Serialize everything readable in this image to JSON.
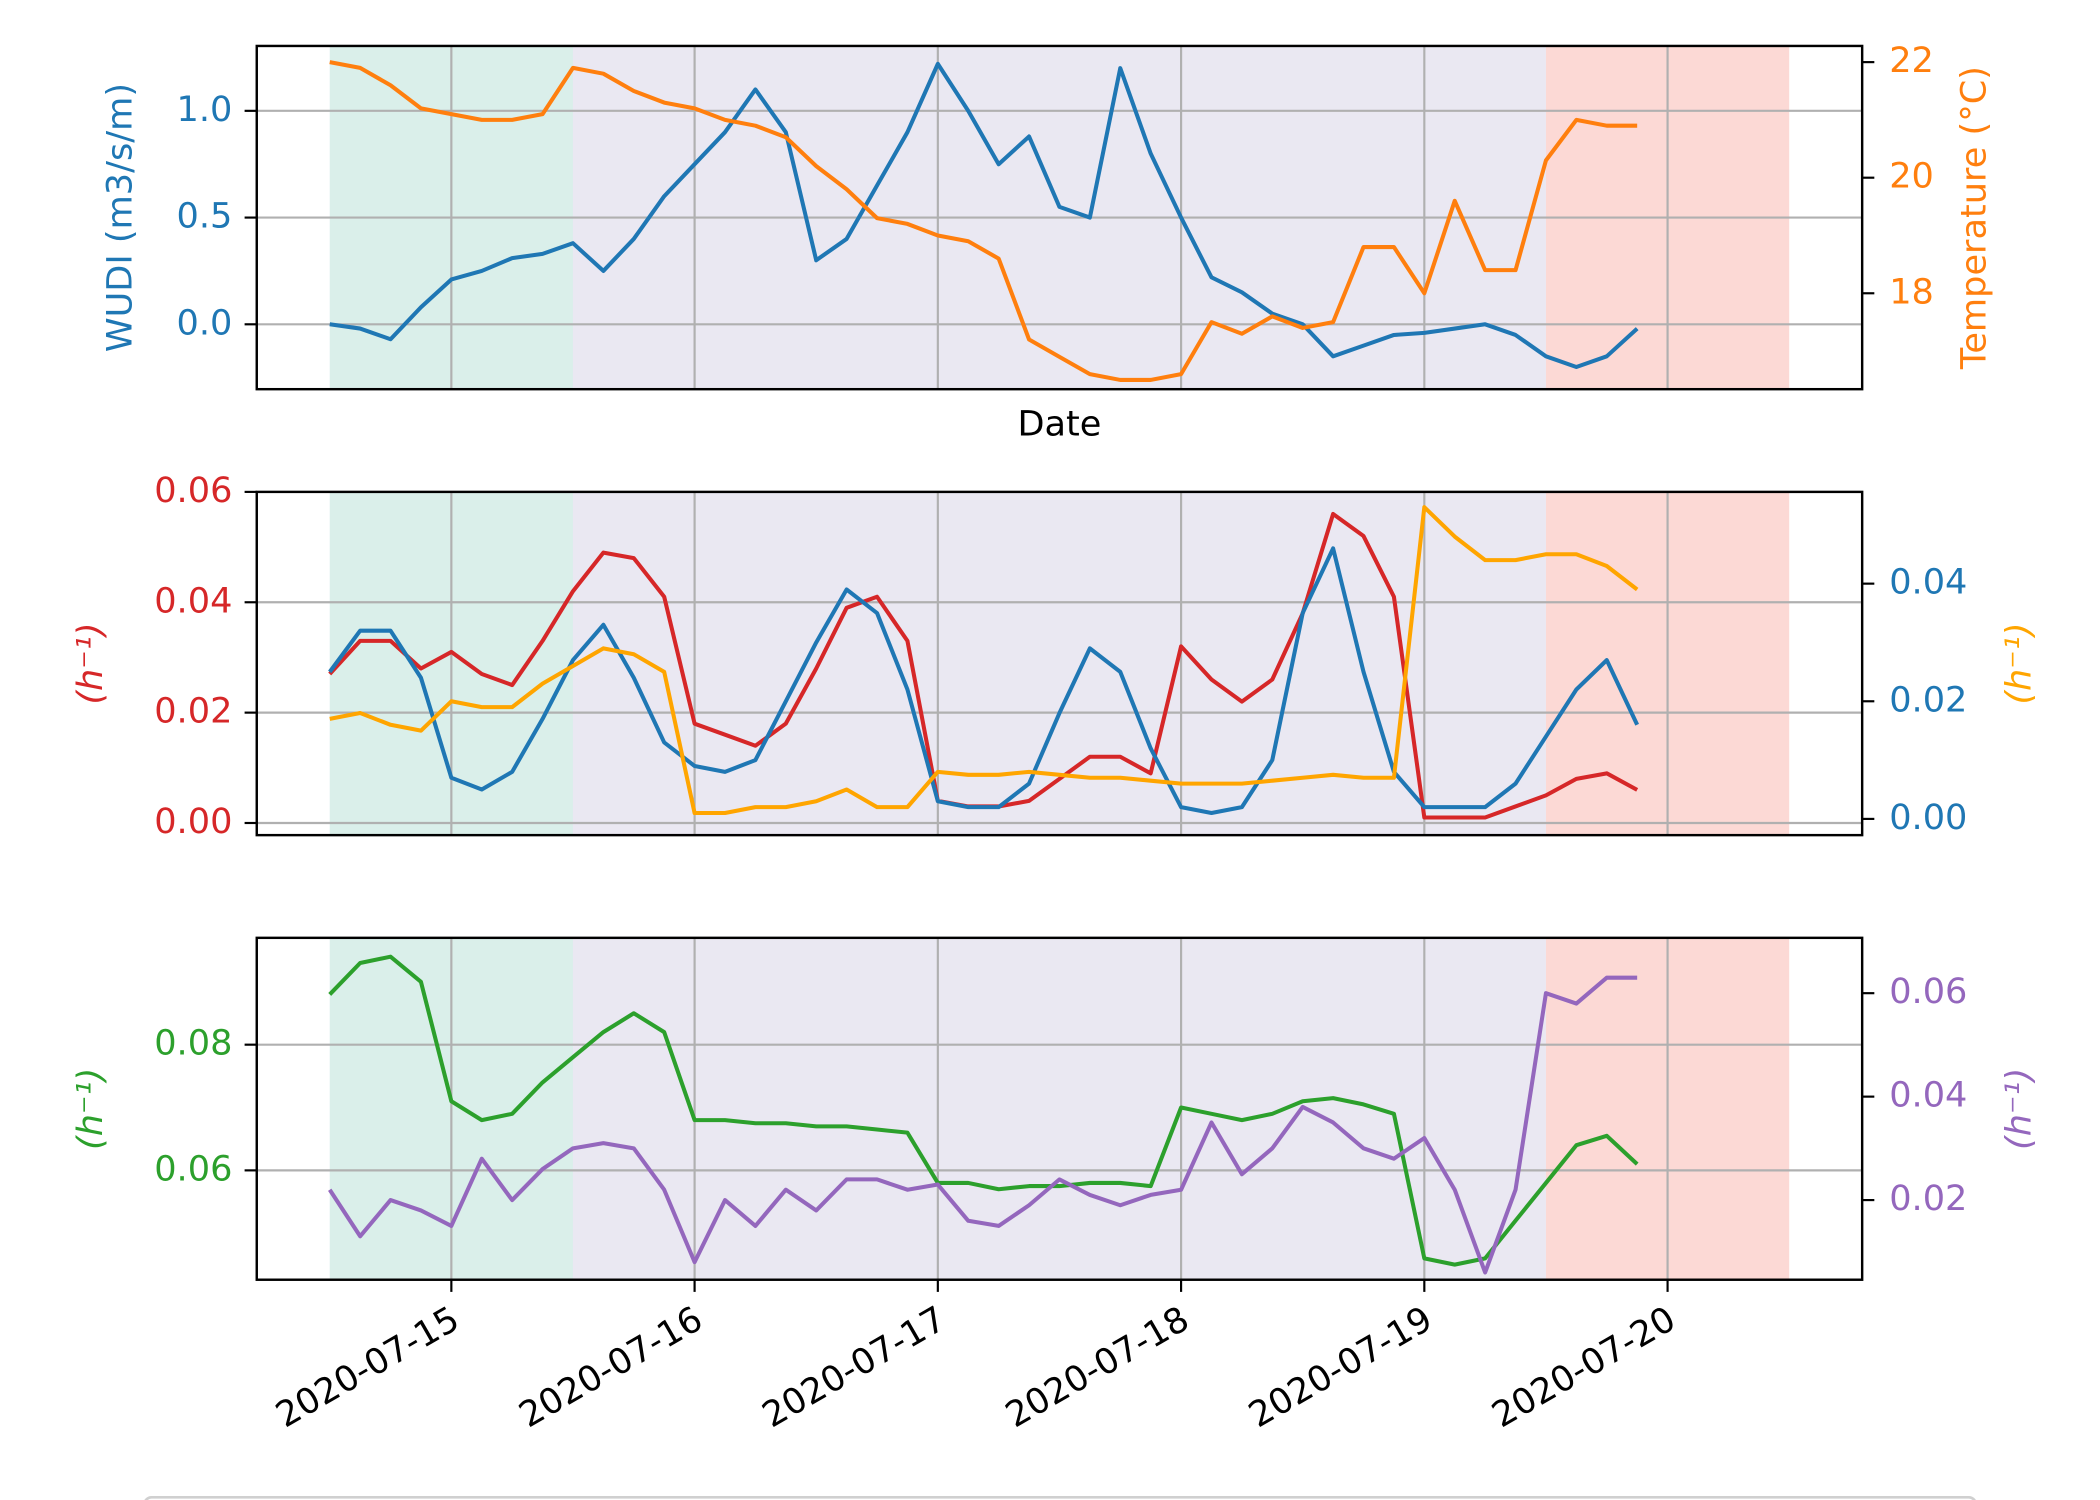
{
  "chart_data": [
    {
      "type": "line",
      "xlabel": "Date",
      "ylabel": "WUDI (m3/s/m)",
      "y2label": "Temperature (°C)",
      "ytick_color": "#1f77b4",
      "ylabel_color": "#1f77b4",
      "y2tick_color": "#ff7f0e",
      "y2label_color": "#ff7f0e",
      "grid": true,
      "xlim": [
        "2020-07-14T04:48",
        "2020-07-20T19:12"
      ],
      "xticks": [
        "2020-07-15",
        "2020-07-16",
        "2020-07-17",
        "2020-07-18",
        "2020-07-19",
        "2020-07-20"
      ],
      "ylim": [
        -0.304,
        1.304
      ],
      "yticks": [
        {
          "value": 0,
          "label": "0.0"
        },
        {
          "value": 0.5,
          "label": "0.5"
        },
        {
          "value": 1,
          "label": "1.0"
        }
      ],
      "y2lim": [
        16.34,
        22.28
      ],
      "y2ticks": [
        18,
        20,
        22
      ],
      "spans": [
        {
          "start": "2020-07-14T12:00",
          "end": "2020-07-15T12:00",
          "color": "#daefea"
        },
        {
          "start": "2020-07-15T12:00",
          "end": "2020-07-19T12:00",
          "color": "#eae8f2"
        },
        {
          "start": "2020-07-19T12:00",
          "end": "2020-07-20T12:00",
          "color": "#fcd9d5"
        }
      ],
      "x": [
        "2020-07-14T12:00",
        "2020-07-14T15:00",
        "2020-07-14T18:00",
        "2020-07-14T21:00",
        "2020-07-15T00:00",
        "2020-07-15T03:00",
        "2020-07-15T06:00",
        "2020-07-15T09:00",
        "2020-07-15T12:00",
        "2020-07-15T15:00",
        "2020-07-15T18:00",
        "2020-07-15T21:00",
        "2020-07-16T00:00",
        "2020-07-16T03:00",
        "2020-07-16T06:00",
        "2020-07-16T09:00",
        "2020-07-16T12:00",
        "2020-07-16T15:00",
        "2020-07-16T18:00",
        "2020-07-16T21:00",
        "2020-07-17T00:00",
        "2020-07-17T03:00",
        "2020-07-17T06:00",
        "2020-07-17T09:00",
        "2020-07-17T12:00",
        "2020-07-17T15:00",
        "2020-07-17T18:00",
        "2020-07-17T21:00",
        "2020-07-18T00:00",
        "2020-07-18T03:00",
        "2020-07-18T06:00",
        "2020-07-18T09:00",
        "2020-07-18T12:00",
        "2020-07-18T15:00",
        "2020-07-18T18:00",
        "2020-07-18T21:00",
        "2020-07-19T00:00",
        "2020-07-19T03:00",
        "2020-07-19T06:00",
        "2020-07-19T09:00",
        "2020-07-19T12:00",
        "2020-07-19T15:00",
        "2020-07-19T18:00",
        "2020-07-19T21:00"
      ],
      "series": [
        {
          "color": "#1f77b4",
          "axis": "y",
          "values": [
            0.0,
            -0.02,
            -0.07,
            0.08,
            0.21,
            0.25,
            0.31,
            0.33,
            0.38,
            0.25,
            0.4,
            0.6,
            0.75,
            0.9,
            1.1,
            0.9,
            0.3,
            0.4,
            0.65,
            0.9,
            1.22,
            1.0,
            0.75,
            0.88,
            0.55,
            0.5,
            1.2,
            0.8,
            0.5,
            0.22,
            0.15,
            0.05,
            0.0,
            -0.15,
            -0.1,
            -0.05,
            -0.04,
            -0.02,
            0.0,
            -0.05,
            -0.15,
            -0.2,
            -0.15,
            -0.02
          ]
        },
        {
          "color": "#ff7f0e",
          "axis": "y2",
          "values": [
            22.0,
            21.9,
            21.6,
            21.2,
            21.1,
            21.0,
            21.0,
            21.1,
            21.9,
            21.8,
            21.5,
            21.3,
            21.2,
            21.0,
            20.9,
            20.7,
            20.2,
            19.8,
            19.3,
            19.2,
            19.0,
            18.9,
            18.6,
            17.2,
            16.9,
            16.6,
            16.5,
            16.5,
            16.6,
            17.5,
            17.3,
            17.6,
            17.4,
            17.5,
            18.8,
            18.8,
            18.0,
            19.6,
            18.4,
            18.4,
            20.3,
            21.0,
            20.9,
            20.9
          ]
        }
      ]
    },
    {
      "type": "line",
      "ylabel": "(h⁻¹)",
      "y2label": "(h⁻¹)",
      "ytick_color": "#d62728",
      "ylabel_color": "#d62728",
      "y2tick_color": "#1f77b4",
      "y2label_color": "#ffa500",
      "grid": true,
      "xlim": [
        "2020-07-14T04:48",
        "2020-07-20T19:12"
      ],
      "xticks": [
        "2020-07-15",
        "2020-07-16",
        "2020-07-17",
        "2020-07-18",
        "2020-07-19",
        "2020-07-20"
      ],
      "ylim": [
        -0.0022,
        0.06
      ],
      "yticks": [
        {
          "value": 0,
          "label": "0.00"
        },
        {
          "value": 0.02,
          "label": "0.02"
        },
        {
          "value": 0.04,
          "label": "0.04"
        },
        {
          "value": 0.06,
          "label": "0.06"
        }
      ],
      "y2lim": [
        -0.00276,
        0.0556
      ],
      "y2ticks": [
        {
          "value": 0,
          "label": "0.00"
        },
        {
          "value": 0.02,
          "label": "0.02"
        },
        {
          "value": 0.04,
          "label": "0.04"
        }
      ],
      "spans": [
        {
          "start": "2020-07-14T12:00",
          "end": "2020-07-15T12:00",
          "color": "#daefea"
        },
        {
          "start": "2020-07-15T12:00",
          "end": "2020-07-19T12:00",
          "color": "#eae8f2"
        },
        {
          "start": "2020-07-19T12:00",
          "end": "2020-07-20T12:00",
          "color": "#fcd9d5"
        }
      ],
      "x": [
        "2020-07-14T12:00",
        "2020-07-14T15:00",
        "2020-07-14T18:00",
        "2020-07-14T21:00",
        "2020-07-15T00:00",
        "2020-07-15T03:00",
        "2020-07-15T06:00",
        "2020-07-15T09:00",
        "2020-07-15T12:00",
        "2020-07-15T15:00",
        "2020-07-15T18:00",
        "2020-07-15T21:00",
        "2020-07-16T00:00",
        "2020-07-16T03:00",
        "2020-07-16T06:00",
        "2020-07-16T09:00",
        "2020-07-16T12:00",
        "2020-07-16T15:00",
        "2020-07-16T18:00",
        "2020-07-16T21:00",
        "2020-07-17T00:00",
        "2020-07-17T03:00",
        "2020-07-17T06:00",
        "2020-07-17T09:00",
        "2020-07-17T12:00",
        "2020-07-17T15:00",
        "2020-07-17T18:00",
        "2020-07-17T21:00",
        "2020-07-18T00:00",
        "2020-07-18T03:00",
        "2020-07-18T06:00",
        "2020-07-18T09:00",
        "2020-07-18T12:00",
        "2020-07-18T15:00",
        "2020-07-18T18:00",
        "2020-07-18T21:00",
        "2020-07-19T00:00",
        "2020-07-19T03:00",
        "2020-07-19T06:00",
        "2020-07-19T09:00",
        "2020-07-19T12:00",
        "2020-07-19T15:00",
        "2020-07-19T18:00",
        "2020-07-19T21:00"
      ],
      "series": [
        {
          "color": "#d62728",
          "axis": "y",
          "values": [
            0.027,
            0.033,
            0.033,
            0.028,
            0.031,
            0.027,
            0.025,
            0.033,
            0.042,
            0.049,
            0.048,
            0.041,
            0.018,
            0.016,
            0.014,
            0.018,
            0.028,
            0.039,
            0.041,
            0.033,
            0.004,
            0.003,
            0.003,
            0.004,
            0.008,
            0.012,
            0.012,
            0.009,
            0.032,
            0.026,
            0.022,
            0.026,
            0.038,
            0.056,
            0.052,
            0.041,
            0.001,
            0.001,
            0.001,
            0.003,
            0.005,
            0.008,
            0.009,
            0.006
          ]
        },
        {
          "color": "#1f77b4",
          "axis": "y2",
          "values": [
            0.025,
            0.032,
            0.032,
            0.024,
            0.007,
            0.005,
            0.008,
            0.017,
            0.027,
            0.033,
            0.024,
            0.013,
            0.009,
            0.008,
            0.01,
            0.02,
            0.03,
            0.039,
            0.035,
            0.022,
            0.003,
            0.002,
            0.002,
            0.006,
            0.018,
            0.029,
            0.025,
            0.012,
            0.002,
            0.001,
            0.002,
            0.01,
            0.035,
            0.046,
            0.025,
            0.008,
            0.002,
            0.002,
            0.002,
            0.006,
            0.014,
            0.022,
            0.027,
            0.016
          ]
        },
        {
          "color": "#ffa500",
          "axis": "y2",
          "values": [
            0.017,
            0.018,
            0.016,
            0.015,
            0.02,
            0.019,
            0.019,
            0.023,
            0.026,
            0.029,
            0.028,
            0.025,
            0.001,
            0.001,
            0.002,
            0.002,
            0.003,
            0.005,
            0.002,
            0.002,
            0.008,
            0.0075,
            0.0075,
            0.008,
            0.0075,
            0.007,
            0.007,
            0.0065,
            0.006,
            0.006,
            0.006,
            0.0065,
            0.007,
            0.0075,
            0.007,
            0.007,
            0.053,
            0.048,
            0.044,
            0.044,
            0.045,
            0.045,
            0.043,
            0.039
          ]
        }
      ]
    },
    {
      "type": "line",
      "ylabel": "(h⁻¹)",
      "y2label": "(h⁻¹)",
      "ytick_color": "#2ca02c",
      "ylabel_color": "#2ca02c",
      "y2tick_color": "#9467bd",
      "y2label_color": "#9467bd",
      "grid": true,
      "xlim": [
        "2020-07-14T04:48",
        "2020-07-20T19:12"
      ],
      "xticks": [
        "2020-07-15",
        "2020-07-16",
        "2020-07-17",
        "2020-07-18",
        "2020-07-19",
        "2020-07-20"
      ],
      "ylim": [
        0.0426,
        0.097
      ],
      "yticks": [
        0.06,
        0.08
      ],
      "y2lim": [
        0.0046,
        0.0707
      ],
      "y2ticks": [
        0.02,
        0.04,
        0.06
      ],
      "spans": [
        {
          "start": "2020-07-14T12:00",
          "end": "2020-07-15T12:00",
          "color": "#daefea"
        },
        {
          "start": "2020-07-15T12:00",
          "end": "2020-07-19T12:00",
          "color": "#eae8f2"
        },
        {
          "start": "2020-07-19T12:00",
          "end": "2020-07-20T12:00",
          "color": "#fcd9d5"
        }
      ],
      "x": [
        "2020-07-14T12:00",
        "2020-07-14T15:00",
        "2020-07-14T18:00",
        "2020-07-14T21:00",
        "2020-07-15T00:00",
        "2020-07-15T03:00",
        "2020-07-15T06:00",
        "2020-07-15T09:00",
        "2020-07-15T12:00",
        "2020-07-15T15:00",
        "2020-07-15T18:00",
        "2020-07-15T21:00",
        "2020-07-16T00:00",
        "2020-07-16T03:00",
        "2020-07-16T06:00",
        "2020-07-16T09:00",
        "2020-07-16T12:00",
        "2020-07-16T15:00",
        "2020-07-16T18:00",
        "2020-07-16T21:00",
        "2020-07-17T00:00",
        "2020-07-17T03:00",
        "2020-07-17T06:00",
        "2020-07-17T09:00",
        "2020-07-17T12:00",
        "2020-07-17T15:00",
        "2020-07-17T18:00",
        "2020-07-17T21:00",
        "2020-07-18T00:00",
        "2020-07-18T03:00",
        "2020-07-18T06:00",
        "2020-07-18T09:00",
        "2020-07-18T12:00",
        "2020-07-18T15:00",
        "2020-07-18T18:00",
        "2020-07-18T21:00",
        "2020-07-19T00:00",
        "2020-07-19T03:00",
        "2020-07-19T06:00",
        "2020-07-19T09:00",
        "2020-07-19T12:00",
        "2020-07-19T15:00",
        "2020-07-19T18:00",
        "2020-07-19T21:00"
      ],
      "series": [
        {
          "color": "#2ca02c",
          "axis": "y",
          "values": [
            0.088,
            0.093,
            0.094,
            0.09,
            0.071,
            0.068,
            0.069,
            0.074,
            0.078,
            0.082,
            0.085,
            0.082,
            0.068,
            0.068,
            0.0675,
            0.0675,
            0.067,
            0.067,
            0.0665,
            0.066,
            0.058,
            0.058,
            0.057,
            0.0575,
            0.0575,
            0.058,
            0.058,
            0.0575,
            0.07,
            0.069,
            0.068,
            0.069,
            0.071,
            0.0715,
            0.0705,
            0.069,
            0.046,
            0.045,
            0.046,
            0.052,
            0.058,
            0.064,
            0.0655,
            0.061
          ]
        },
        {
          "color": "#9467bd",
          "axis": "y2",
          "values": [
            0.022,
            0.013,
            0.02,
            0.018,
            0.015,
            0.028,
            0.02,
            0.026,
            0.03,
            0.031,
            0.03,
            0.022,
            0.008,
            0.02,
            0.015,
            0.022,
            0.018,
            0.024,
            0.024,
            0.022,
            0.023,
            0.016,
            0.015,
            0.019,
            0.024,
            0.021,
            0.019,
            0.021,
            0.022,
            0.035,
            0.025,
            0.03,
            0.038,
            0.035,
            0.03,
            0.028,
            0.032,
            0.022,
            0.006,
            0.022,
            0.06,
            0.058,
            0.063,
            0.063
          ]
        }
      ]
    }
  ]
}
